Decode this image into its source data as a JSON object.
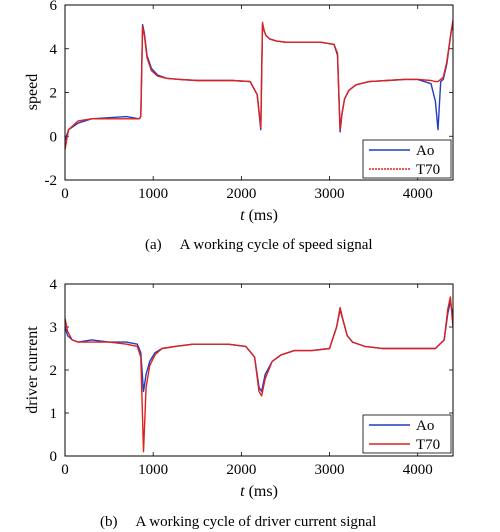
{
  "chart_data": [
    {
      "type": "line",
      "xlabel_var": "t",
      "xlabel_unit": "(ms)",
      "ylabel": "speed",
      "xlim": [
        0,
        4400
      ],
      "ylim": [
        -2,
        6
      ],
      "xticks": [
        "0",
        "1000",
        "2000",
        "3000",
        "4000"
      ],
      "yticks": [
        "-2",
        "0",
        "2",
        "4",
        "6"
      ],
      "caption_tag": "(a)",
      "caption": "A working cycle of speed signal",
      "legend_position": "bottom-right",
      "series": [
        {
          "name": "Ao",
          "color": "#1f3fbf",
          "x": [
            0,
            40,
            150,
            300,
            500,
            700,
            840,
            860,
            880,
            900,
            930,
            980,
            1050,
            1150,
            1300,
            1500,
            1700,
            1900,
            2100,
            2180,
            2220,
            2240,
            2260,
            2280,
            2320,
            2400,
            2500,
            2700,
            2900,
            3050,
            3090,
            3120,
            3140,
            3170,
            3220,
            3300,
            3450,
            3650,
            3850,
            4000,
            4150,
            4200,
            4230,
            4260,
            4290,
            4330,
            4380,
            4400
          ],
          "y": [
            -0.2,
            0.3,
            0.6,
            0.8,
            0.85,
            0.9,
            0.8,
            0.9,
            5.1,
            4.7,
            3.7,
            3.1,
            2.8,
            2.65,
            2.6,
            2.55,
            2.55,
            2.55,
            2.5,
            1.9,
            0.3,
            5.1,
            4.8,
            4.6,
            4.45,
            4.35,
            4.3,
            4.3,
            4.3,
            4.2,
            3.7,
            0.2,
            1.0,
            1.7,
            2.1,
            2.35,
            2.5,
            2.55,
            2.6,
            2.6,
            2.4,
            1.6,
            0.3,
            2.5,
            2.6,
            3.3,
            4.8,
            5.1
          ]
        },
        {
          "name": "T70",
          "color": "#e0201e",
          "x": [
            0,
            40,
            150,
            300,
            500,
            700,
            840,
            860,
            880,
            900,
            930,
            980,
            1050,
            1150,
            1300,
            1500,
            1700,
            1900,
            2100,
            2180,
            2220,
            2240,
            2260,
            2280,
            2320,
            2400,
            2500,
            2700,
            2900,
            3050,
            3090,
            3120,
            3140,
            3170,
            3220,
            3300,
            3450,
            3650,
            3850,
            4000,
            4150,
            4200,
            4230,
            4260,
            4290,
            4330,
            4380,
            4400
          ],
          "y": [
            -0.6,
            0.3,
            0.7,
            0.8,
            0.8,
            0.8,
            0.8,
            0.9,
            5.0,
            4.6,
            3.6,
            3.0,
            2.75,
            2.65,
            2.6,
            2.55,
            2.55,
            2.55,
            2.5,
            1.9,
            0.4,
            5.2,
            4.8,
            4.6,
            4.45,
            4.35,
            4.3,
            4.3,
            4.3,
            4.2,
            3.8,
            0.3,
            1.0,
            1.7,
            2.1,
            2.35,
            2.5,
            2.55,
            2.6,
            2.6,
            2.55,
            2.5,
            2.5,
            2.6,
            2.7,
            3.4,
            4.8,
            5.3
          ]
        }
      ]
    },
    {
      "type": "line",
      "xlabel_var": "t",
      "xlabel_unit": "(ms)",
      "ylabel": "driver current",
      "xlim": [
        0,
        4400
      ],
      "ylim": [
        0,
        4
      ],
      "xticks": [
        "0",
        "1000",
        "2000",
        "3000",
        "4000"
      ],
      "yticks": [
        "0",
        "1",
        "2",
        "3",
        "4"
      ],
      "caption_tag": "(b)",
      "caption": "A working cycle of driver current signal",
      "legend_position": "bottom-right",
      "series": [
        {
          "name": "Ao",
          "color": "#1f3fbf",
          "x": [
            0,
            30,
            80,
            150,
            300,
            500,
            700,
            820,
            860,
            890,
            920,
            960,
            1020,
            1100,
            1250,
            1450,
            1650,
            1850,
            2050,
            2150,
            2200,
            2230,
            2270,
            2350,
            2450,
            2600,
            2800,
            3000,
            3080,
            3120,
            3160,
            3200,
            3260,
            3400,
            3600,
            3800,
            4000,
            4200,
            4300,
            4340,
            4370,
            4400
          ],
          "y": [
            3.0,
            2.8,
            2.7,
            2.65,
            2.7,
            2.65,
            2.65,
            2.6,
            2.4,
            1.5,
            1.9,
            2.2,
            2.4,
            2.5,
            2.55,
            2.6,
            2.6,
            2.6,
            2.55,
            2.3,
            1.6,
            1.5,
            1.9,
            2.2,
            2.35,
            2.45,
            2.45,
            2.5,
            3.0,
            3.4,
            3.1,
            2.8,
            2.65,
            2.55,
            2.5,
            2.5,
            2.5,
            2.5,
            2.7,
            3.3,
            3.6,
            3.2
          ]
        },
        {
          "name": "T70",
          "color": "#e0201e",
          "x": [
            0,
            30,
            80,
            150,
            300,
            500,
            700,
            820,
            860,
            890,
            920,
            960,
            1020,
            1100,
            1250,
            1450,
            1650,
            1850,
            2050,
            2150,
            2200,
            2230,
            2270,
            2350,
            2450,
            2600,
            2800,
            3000,
            3080,
            3120,
            3160,
            3200,
            3260,
            3400,
            3600,
            3800,
            4000,
            4200,
            4300,
            4340,
            4370,
            4400
          ],
          "y": [
            3.2,
            2.9,
            2.7,
            2.65,
            2.65,
            2.65,
            2.6,
            2.55,
            2.3,
            0.1,
            1.6,
            2.1,
            2.35,
            2.5,
            2.55,
            2.6,
            2.6,
            2.6,
            2.55,
            2.3,
            1.5,
            1.4,
            1.8,
            2.2,
            2.35,
            2.45,
            2.45,
            2.5,
            3.0,
            3.45,
            3.1,
            2.8,
            2.65,
            2.55,
            2.5,
            2.5,
            2.5,
            2.5,
            2.7,
            3.4,
            3.7,
            3.0
          ]
        }
      ]
    }
  ]
}
